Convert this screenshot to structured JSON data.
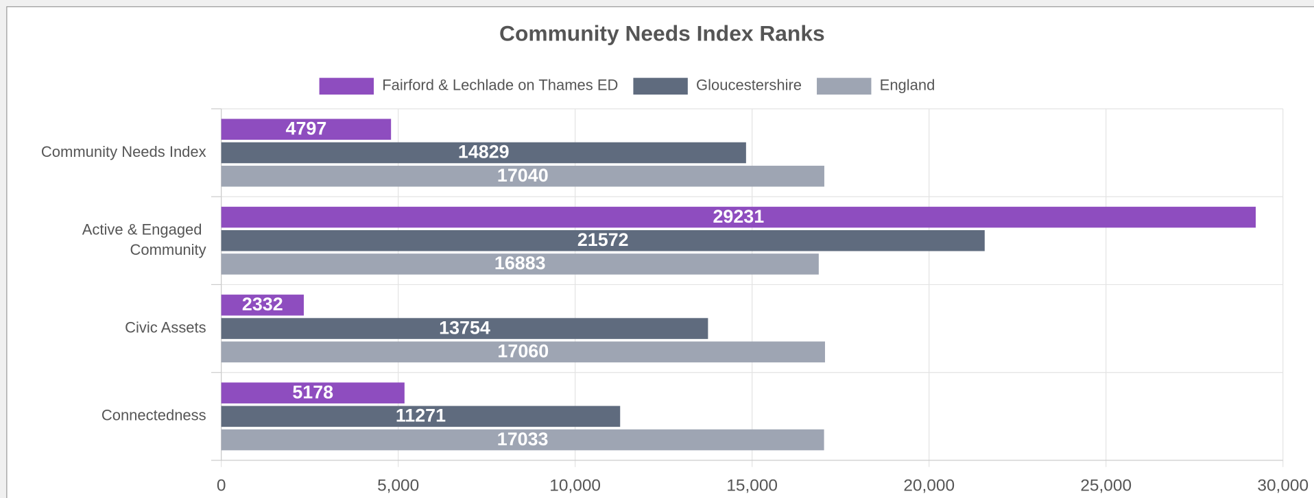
{
  "chart_data": {
    "type": "barh",
    "title": "Community Needs Index Ranks",
    "categories": [
      "Community Needs Index",
      "Active & Engaged Community",
      "Civic Assets",
      "Connectedness"
    ],
    "series": [
      {
        "name": "Fairford & Lechlade on Thames ED",
        "color": "#8e4dbf",
        "values": [
          4797,
          29231,
          2332,
          5178
        ]
      },
      {
        "name": "Gloucestershire",
        "color": "#5f6b7e",
        "values": [
          14829,
          21572,
          13754,
          11271
        ]
      },
      {
        "name": "England",
        "color": "#9ea5b3",
        "values": [
          17040,
          16883,
          17060,
          17033
        ]
      }
    ],
    "xlim": [
      0,
      30000
    ],
    "xticks": [
      0,
      {
        "value": 5000,
        "label": "5,000"
      },
      {
        "value": 10000,
        "label": "10,000"
      },
      {
        "value": 15000,
        "label": "15,000"
      },
      {
        "value": 20000,
        "label": "20,000"
      },
      {
        "value": 25000,
        "label": "25,000"
      },
      {
        "value": 30000,
        "label": "30,000"
      }
    ],
    "grid": true,
    "legend": "top"
  }
}
